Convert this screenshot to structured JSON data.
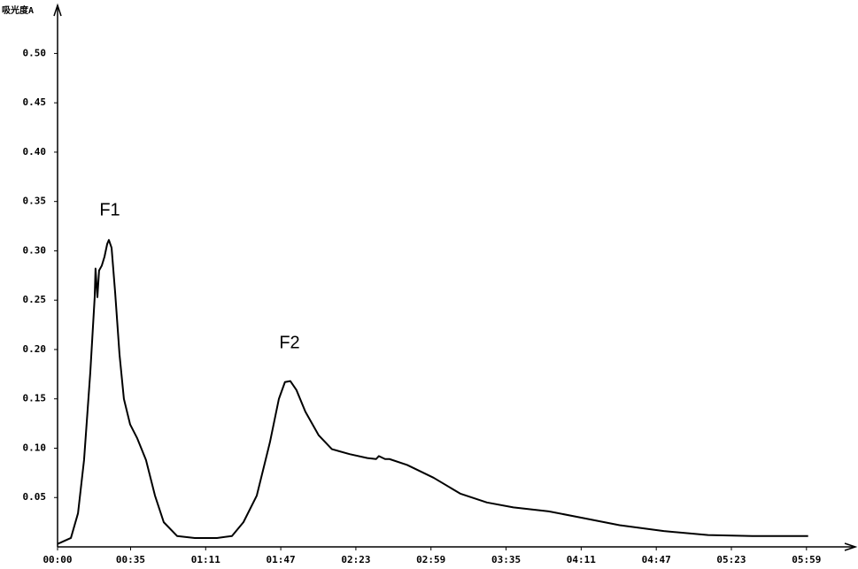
{
  "chart_data": {
    "type": "line",
    "y_label": "吸光度A",
    "annotations": [
      "F1",
      "F2"
    ],
    "x": [
      0,
      6.4,
      9.8,
      12.7,
      15.7,
      17.8,
      18.2,
      19.1,
      19.9,
      21.2,
      22.5,
      23.8,
      24.6,
      25.9,
      27.6,
      29.7,
      31.8,
      34.8,
      38.2,
      42.4,
      46.7,
      50.9,
      57.3,
      65.8,
      76.4,
      83.6,
      89.1,
      95.5,
      101.8,
      106.1,
      109,
      111.6,
      114.5,
      118.8,
      125.2,
      131.5,
      140,
      148.5,
      152.7,
      154,
      157,
      159.1,
      167.6,
      180.3,
      193,
      205.8,
      218.5,
      235.5,
      252.4,
      269.4,
      290.6,
      311.8,
      333,
      359.8
    ],
    "series": [
      {
        "color": "#000000",
        "values": [
          0.003,
          0.009,
          0.034,
          0.088,
          0.177,
          0.253,
          0.282,
          0.253,
          0.28,
          0.285,
          0.294,
          0.307,
          0.311,
          0.303,
          0.258,
          0.195,
          0.15,
          0.124,
          0.11,
          0.088,
          0.052,
          0.025,
          0.011,
          0.009,
          0.009,
          0.011,
          0.025,
          0.052,
          0.106,
          0.15,
          0.167,
          0.168,
          0.159,
          0.137,
          0.113,
          0.099,
          0.094,
          0.09,
          0.089,
          0.092,
          0.089,
          0.089,
          0.083,
          0.07,
          0.054,
          0.045,
          0.04,
          0.036,
          0.029,
          0.022,
          0.016,
          0.012,
          0.011,
          0.011
        ]
      }
    ],
    "xlim": [
      0,
      382
    ],
    "xticks": [
      {
        "value": 0,
        "label": "00:00"
      },
      {
        "value": 35,
        "label": "00:35"
      },
      {
        "value": 71,
        "label": "01:11"
      },
      {
        "value": 107,
        "label": "01:47"
      },
      {
        "value": 143,
        "label": "02:23"
      },
      {
        "value": 179,
        "label": "02:59"
      },
      {
        "value": 215,
        "label": "03:35"
      },
      {
        "value": 251,
        "label": "04:11"
      },
      {
        "value": 287,
        "label": "04:47"
      },
      {
        "value": 323,
        "label": "05:23"
      },
      {
        "value": 359,
        "label": "05:59"
      }
    ],
    "ylim": [
      0,
      0.547
    ],
    "yticks": [
      0.05,
      {
        "value": 0.1,
        "label": "0.10"
      },
      0.15,
      {
        "value": 0.2,
        "label": "0.20"
      },
      0.25,
      {
        "value": 0.3,
        "label": "0.30"
      },
      0.35,
      {
        "value": 0.4,
        "label": "0.40"
      },
      0.45,
      {
        "value": 0.5,
        "label": "0.50"
      }
    ],
    "grid": false
  }
}
